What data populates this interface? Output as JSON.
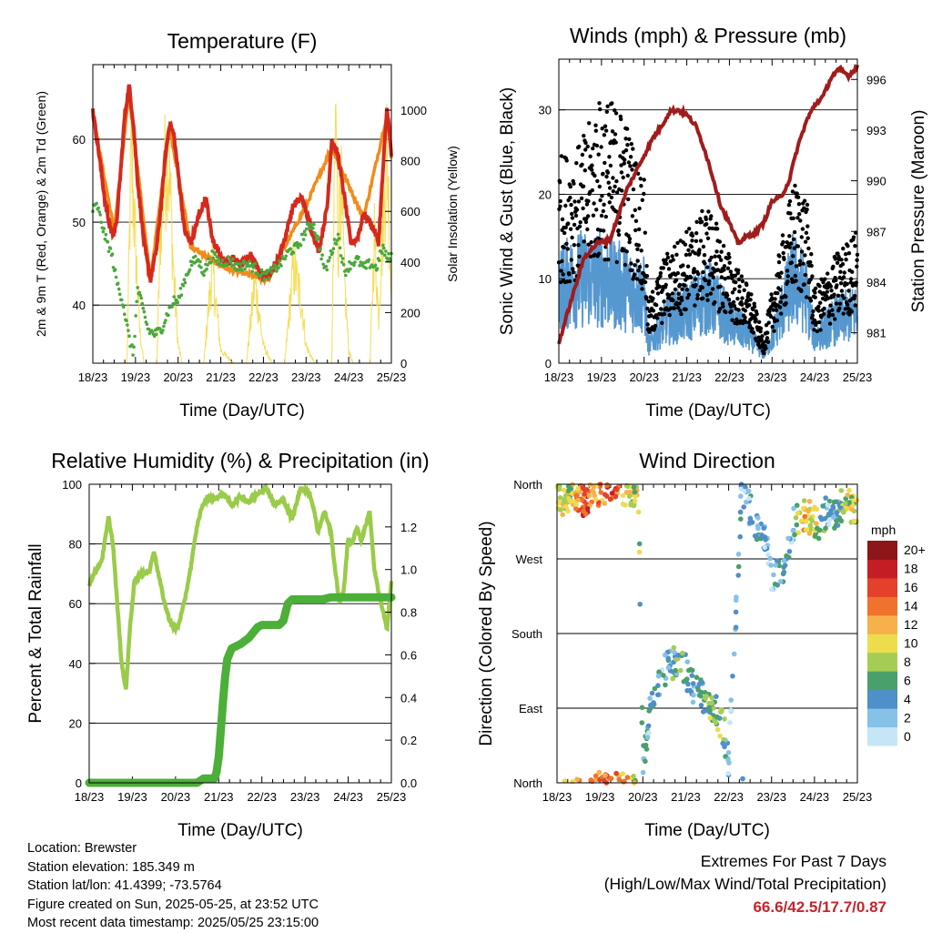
{
  "colors": {
    "temp_red": "#d42a1e",
    "temp_orange": "#f08c1c",
    "dewpoint_green": "#4aa83c",
    "solar_yellow": "#f5dd55",
    "gust_black": "#000000",
    "wind_blue": "#5597cf",
    "pressure_maroon": "#a01c1c",
    "rh_lightgreen": "#9acb4a",
    "precip_green": "#4caf3a",
    "extremes_red": "#c0262c"
  },
  "chart_data": [
    {
      "type": "line",
      "title": "Temperature (F)",
      "xlabel": "Time (Day/UTC)",
      "ylabel": "2m & 9m T (Red, Orange) & 2m Td (Green)",
      "y2label": "Solar Insolation (Yellow)",
      "x_ticks": [
        "18/23",
        "19/23",
        "20/23",
        "21/23",
        "22/23",
        "23/23",
        "24/23",
        "25/23"
      ],
      "xlim": [
        0,
        7
      ],
      "ylim": [
        33,
        69
      ],
      "y_ticks": [
        40,
        50,
        60
      ],
      "y2lim": [
        0,
        1180
      ],
      "y2_ticks": [
        0,
        200,
        400,
        600,
        800,
        1000
      ],
      "grid": "horizontal",
      "series": [
        {
          "role": "2m T",
          "color_key": "temp_red",
          "x": [
            0,
            0.15,
            0.3,
            0.45,
            0.55,
            0.65,
            0.75,
            0.85,
            0.95,
            1.05,
            1.2,
            1.35,
            1.5,
            1.6,
            1.7,
            1.8,
            1.9,
            2.0,
            2.15,
            2.3,
            2.5,
            2.65,
            2.8,
            2.95,
            3.1,
            3.3,
            3.5,
            3.7,
            3.9,
            4.1,
            4.3,
            4.5,
            4.7,
            4.9,
            5.1,
            5.3,
            5.5,
            5.6,
            5.75,
            5.9,
            6.05,
            6.2,
            6.35,
            6.5,
            6.6,
            6.7,
            6.8,
            6.9,
            7.0
          ],
          "values": [
            63.5,
            58,
            52,
            48.5,
            49.5,
            56,
            63,
            66.5,
            62,
            55,
            47.5,
            43,
            47,
            52,
            58,
            62,
            60.5,
            56,
            49,
            47.5,
            51,
            53,
            48,
            46.5,
            45,
            45.5,
            45,
            46,
            44,
            43.5,
            45,
            48,
            52,
            53,
            49.5,
            46.5,
            52,
            60,
            58,
            53,
            47.5,
            48,
            51,
            50,
            49,
            47.5,
            56,
            64,
            58
          ]
        },
        {
          "role": "9m T",
          "color_key": "temp_orange",
          "x": [
            0,
            0.5,
            0.85,
            1.35,
            1.8,
            2.3,
            3.1,
            4.1,
            5.0,
            5.6,
            6.35,
            6.9,
            7.0
          ],
          "values": [
            63,
            49,
            65.5,
            43,
            61.5,
            47,
            44.5,
            43,
            52,
            59,
            50.5,
            63,
            58
          ]
        },
        {
          "role": "2m Td",
          "color_key": "dewpoint_green",
          "x": [
            0,
            0.1,
            0.2,
            0.3,
            0.45,
            0.55,
            0.7,
            0.85,
            0.95,
            1.05,
            1.15,
            1.3,
            1.45,
            1.6,
            1.75,
            1.9,
            2.0,
            2.15,
            2.3,
            2.45,
            2.6,
            2.8,
            3.0,
            3.2,
            3.4,
            3.6,
            3.8,
            4.0,
            4.2,
            4.4,
            4.6,
            4.8,
            5.0,
            5.15,
            5.3,
            5.45,
            5.6,
            5.75,
            5.9,
            6.05,
            6.2,
            6.35,
            6.5,
            6.65,
            6.8,
            6.9,
            7.0
          ],
          "values": [
            51.5,
            52,
            50,
            48,
            46,
            43,
            40.5,
            36,
            34,
            42,
            40,
            37,
            36.5,
            37,
            39,
            40.5,
            40.5,
            43,
            45,
            45.5,
            44,
            46,
            45,
            45.5,
            44.5,
            45,
            44.5,
            43.5,
            44,
            45,
            46.5,
            47,
            49,
            50,
            47.5,
            44,
            46.5,
            48.5,
            44,
            45,
            45.5,
            44.5,
            45,
            44.5,
            47,
            45.5,
            46
          ]
        },
        {
          "role": "Solar Insolation",
          "axis": "y2",
          "color_key": "solar_yellow",
          "x": [
            0,
            0.8,
            0.9,
            1.0,
            1.1,
            1.2,
            1.5,
            1.6,
            1.75,
            1.8,
            1.9,
            2.0,
            2.1,
            2.3,
            2.6,
            2.8,
            3.0,
            3.3,
            3.6,
            3.8,
            4.0,
            4.2,
            4.5,
            4.7,
            4.9,
            5.0,
            5.2,
            5.4,
            5.6,
            5.7,
            5.75,
            5.8,
            5.9,
            6.0,
            6.1,
            6.3,
            6.5,
            6.6,
            6.7,
            6.8,
            6.9,
            7.0
          ],
          "values": [
            0,
            0,
            980,
            550,
            150,
            0,
            0,
            700,
            1000,
            850,
            400,
            80,
            0,
            0,
            0,
            450,
            60,
            0,
            0,
            380,
            80,
            0,
            0,
            450,
            280,
            80,
            0,
            0,
            0,
            1180,
            500,
            920,
            380,
            60,
            0,
            0,
            0,
            600,
            220,
            650,
            1020,
            300
          ]
        }
      ]
    },
    {
      "type": "scatter",
      "title": "Winds (mph) & Pressure (mb)",
      "xlabel": "Time (Day/UTC)",
      "ylabel": "Sonic Wind & Gust (Blue, Black)",
      "y2label": "Station Pressure (Maroon)",
      "x_ticks": [
        "18/23",
        "19/23",
        "20/23",
        "21/23",
        "22/23",
        "23/23",
        "24/23",
        "25/23"
      ],
      "xlim": [
        0,
        7
      ],
      "ylim": [
        0,
        36
      ],
      "y_ticks": [
        0,
        10,
        20,
        30
      ],
      "y2lim": [
        979.2,
        997.2
      ],
      "y2_ticks": [
        981,
        984,
        987,
        990,
        993,
        996
      ],
      "grid": "horizontal",
      "series": [
        {
          "role": "Sonic Wind",
          "color_key": "wind_blue",
          "x": [
            0,
            0.5,
            1.0,
            1.5,
            2.0,
            2.1,
            2.5,
            3.0,
            3.5,
            4.0,
            4.5,
            4.8,
            5.0,
            5.5,
            5.8,
            6.0,
            6.5,
            7.0
          ],
          "values": [
            9,
            10,
            10,
            9,
            8,
            2,
            5,
            6,
            8,
            5,
            3,
            1,
            3,
            10,
            8,
            3,
            5,
            6
          ]
        },
        {
          "role": "Gust",
          "color_key": "gust_black",
          "x": [
            0,
            0.5,
            1.0,
            1.5,
            2.0,
            2.1,
            2.5,
            3.0,
            3.5,
            4.0,
            4.5,
            4.8,
            5.0,
            5.5,
            5.8,
            6.0,
            6.5,
            7.0
          ],
          "values": [
            17,
            18,
            22,
            21,
            15,
            5,
            9,
            11,
            13,
            9,
            6,
            2,
            6,
            15,
            14,
            6,
            9,
            11
          ]
        },
        {
          "role": "Station Pressure",
          "axis": "y2",
          "color_key": "pressure_maroon",
          "x": [
            0,
            0.3,
            0.6,
            0.9,
            1.2,
            1.6,
            2.0,
            2.2,
            2.4,
            2.6,
            2.8,
            3.0,
            3.2,
            3.4,
            3.6,
            3.8,
            4.0,
            4.2,
            4.4,
            4.6,
            4.8,
            5.0,
            5.2,
            5.4,
            5.6,
            5.8,
            6.0,
            6.2,
            6.4,
            6.6,
            6.8,
            6.9,
            7.0
          ],
          "values": [
            980.4,
            983,
            985.5,
            986.3,
            986.5,
            989.5,
            991.5,
            992.5,
            993.2,
            994.1,
            994.2,
            993.9,
            993.3,
            992,
            990.3,
            988.5,
            987.5,
            986.3,
            986.7,
            986.9,
            987.5,
            988.8,
            989,
            990,
            992,
            993.5,
            994.5,
            995,
            996.2,
            996.6,
            996.2,
            996.5,
            996.8
          ]
        }
      ]
    },
    {
      "type": "line",
      "title": "Relative Humidity (%) & Precipitation (in)",
      "xlabel": "Time (Day/UTC)",
      "ylabel": "Percent & Total Rainfall",
      "x_ticks": [
        "18/23",
        "19/23",
        "20/23",
        "21/23",
        "22/23",
        "23/23",
        "24/23",
        "25/23"
      ],
      "xlim": [
        0,
        7
      ],
      "ylim": [
        0,
        100
      ],
      "y_ticks": [
        0,
        20,
        40,
        60,
        80,
        100
      ],
      "y2lim": [
        0,
        1.4
      ],
      "y2_ticks": [
        "0.0",
        "0.2",
        "0.4",
        "0.6",
        "0.8",
        "1.0",
        "1.2"
      ],
      "grid": "horizontal",
      "series": [
        {
          "role": "Relative Humidity",
          "color_key": "rh_lightgreen",
          "x": [
            0,
            0.1,
            0.2,
            0.3,
            0.45,
            0.55,
            0.65,
            0.75,
            0.85,
            0.95,
            1.05,
            1.2,
            1.4,
            1.5,
            1.6,
            1.75,
            1.85,
            1.95,
            2.05,
            2.2,
            2.35,
            2.5,
            2.6,
            2.75,
            2.9,
            3.1,
            3.3,
            3.5,
            3.7,
            3.9,
            4.1,
            4.3,
            4.5,
            4.7,
            4.9,
            5.1,
            5.2,
            5.3,
            5.45,
            5.6,
            5.7,
            5.8,
            5.9,
            6.0,
            6.1,
            6.2,
            6.3,
            6.4,
            6.5,
            6.6,
            6.7,
            6.8,
            6.9,
            7.0
          ],
          "values": [
            66,
            70,
            72,
            75,
            89,
            80,
            60,
            40,
            31,
            53,
            68,
            70,
            71,
            78,
            70,
            60,
            55,
            52,
            52,
            60,
            72,
            86,
            92,
            96,
            95,
            97,
            93,
            96,
            94,
            97,
            99,
            93,
            95,
            88,
            99,
            97,
            92,
            84,
            91,
            84,
            71,
            60,
            65,
            82,
            80,
            86,
            81,
            86,
            91,
            72,
            64,
            58,
            51,
            68
          ]
        },
        {
          "role": "Total Precipitation",
          "axis": "y2",
          "color_key": "precip_green",
          "x": [
            0,
            2.5,
            2.65,
            2.9,
            2.95,
            3.0,
            3.05,
            3.1,
            3.15,
            3.2,
            3.3,
            3.5,
            3.7,
            3.9,
            4.0,
            4.2,
            4.4,
            4.5,
            4.6,
            4.7,
            4.8,
            4.9,
            5.0,
            5.4,
            5.6,
            5.7,
            6.0,
            6.5,
            7.0
          ],
          "values": [
            0,
            0,
            0.02,
            0.02,
            0.05,
            0.12,
            0.25,
            0.38,
            0.5,
            0.58,
            0.63,
            0.65,
            0.68,
            0.73,
            0.74,
            0.74,
            0.74,
            0.76,
            0.84,
            0.86,
            0.86,
            0.86,
            0.86,
            0.86,
            0.87,
            0.87,
            0.87,
            0.87,
            0.87
          ]
        }
      ]
    },
    {
      "type": "scatter",
      "title": "Wind Direction",
      "xlabel": "Time (Day/UTC)",
      "ylabel": "Direction (Colored By Speed)",
      "x_ticks": [
        "18/23",
        "19/23",
        "20/23",
        "21/23",
        "22/23",
        "23/23",
        "24/23",
        "25/23"
      ],
      "xlim": [
        0,
        7
      ],
      "ylim": [
        0,
        360
      ],
      "y_ticks": [
        "North",
        "East",
        "South",
        "West",
        "North"
      ],
      "y_tick_values": [
        0,
        90,
        180,
        270,
        360
      ],
      "colorbar_title": "mph",
      "colorbar_labels": [
        "0",
        "2",
        "4",
        "6",
        "8",
        "10",
        "12",
        "14",
        "16",
        "18",
        "20+"
      ],
      "colorbar_colors": [
        "#c6e6f7",
        "#86c1e8",
        "#4f8fca",
        "#4aa06a",
        "#a5cd55",
        "#ecdd4d",
        "#f7b04a",
        "#f0722d",
        "#e5402a",
        "#c41e24",
        "#8e1518"
      ],
      "series": [
        {
          "x": [
            0.1,
            0.3,
            0.5,
            0.7,
            0.9,
            1.1,
            1.3,
            1.5,
            1.7,
            1.9,
            2.0,
            2.2,
            2.5,
            2.7,
            2.9,
            3.1,
            3.3,
            3.5,
            3.7,
            3.9,
            4.0,
            4.3,
            4.5,
            4.7,
            4.9,
            5.0,
            5.3,
            5.5,
            5.7,
            5.9,
            6.1,
            6.3,
            6.5,
            6.7,
            6.9
          ],
          "y": [
            340,
            350,
            345,
            335,
            355,
            350,
            355,
            352,
            355,
            350,
            20,
            95,
            135,
            145,
            150,
            120,
            110,
            100,
            90,
            60,
            20,
            350,
            330,
            300,
            285,
            250,
            260,
            310,
            325,
            320,
            310,
            330,
            325,
            340,
            330
          ],
          "speeds": [
            10,
            8,
            14,
            16,
            12,
            14,
            16,
            12,
            10,
            8,
            4,
            3,
            4,
            5,
            6,
            4,
            4,
            6,
            7,
            6,
            2,
            3,
            3,
            3,
            2,
            2,
            4,
            3,
            12,
            10,
            8,
            3,
            4,
            9,
            8
          ]
        }
      ]
    }
  ],
  "info": {
    "location": "Location: Brewster",
    "elevation": "Station elevation: 185.349 m",
    "latlon": "Station lat/lon: 41.4399; -73.5764",
    "created": "Figure created on Sun, 2025-05-25, at 23:52 UTC",
    "timestamp": "Most recent data timestamp: 2025/05/25 23:15:00"
  },
  "extremes": {
    "line1": "Extremes For Past 7 Days",
    "line2": "(High/Low/Max Wind/Total Precipitation)",
    "values": "66.6/42.5/17.7/0.87"
  }
}
